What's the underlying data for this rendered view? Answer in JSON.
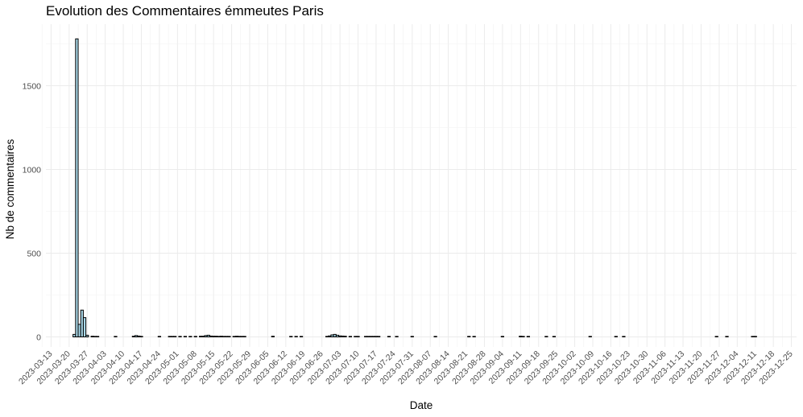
{
  "chart_data": {
    "type": "bar",
    "title": "Evolution des Commentaires émmeutes Paris",
    "xlabel": "Date",
    "ylabel": "Nb de commentaires",
    "ylim": [
      0,
      1850
    ],
    "xlim": [
      "2023-03-11",
      "2023-12-27"
    ],
    "y_ticks": [
      0,
      500,
      1000,
      1500
    ],
    "x_tick_labels": [
      "2023-03-13",
      "2023-03-20",
      "2023-03-27",
      "2023-04-03",
      "2023-04-10",
      "2023-04-17",
      "2023-04-24",
      "2023-05-01",
      "2023-05-08",
      "2023-05-15",
      "2023-05-22",
      "2023-05-29",
      "2023-06-05",
      "2023-06-12",
      "2023-06-19",
      "2023-06-26",
      "2023-07-03",
      "2023-07-10",
      "2023-07-17",
      "2023-07-24",
      "2023-07-31",
      "2023-08-07",
      "2023-08-14",
      "2023-08-21",
      "2023-08-28",
      "2023-09-04",
      "2023-09-11",
      "2023-09-18",
      "2023-09-25",
      "2023-10-02",
      "2023-10-09",
      "2023-10-16",
      "2023-10-23",
      "2023-10-30",
      "2023-11-06",
      "2023-11-13",
      "2023-11-20",
      "2023-11-27",
      "2023-12-04",
      "2023-12-11",
      "2023-12-18",
      "2023-12-25"
    ],
    "grid": true,
    "bar_fill": "#a9d8e8",
    "bar_stroke": "#000000",
    "data": [
      {
        "x": "2023-03-22",
        "y": 15
      },
      {
        "x": "2023-03-23",
        "y": 1780
      },
      {
        "x": "2023-03-24",
        "y": 75
      },
      {
        "x": "2023-03-25",
        "y": 160
      },
      {
        "x": "2023-03-26",
        "y": 115
      },
      {
        "x": "2023-03-27",
        "y": 10
      },
      {
        "x": "2023-03-29",
        "y": 4
      },
      {
        "x": "2023-03-30",
        "y": 3
      },
      {
        "x": "2023-03-31",
        "y": 3
      },
      {
        "x": "2023-04-07",
        "y": 3
      },
      {
        "x": "2023-04-14",
        "y": 4
      },
      {
        "x": "2023-04-15",
        "y": 8
      },
      {
        "x": "2023-04-16",
        "y": 5
      },
      {
        "x": "2023-04-17",
        "y": 3
      },
      {
        "x": "2023-04-24",
        "y": 3
      },
      {
        "x": "2023-04-28",
        "y": 3
      },
      {
        "x": "2023-04-29",
        "y": 3
      },
      {
        "x": "2023-04-30",
        "y": 3
      },
      {
        "x": "2023-05-02",
        "y": 3
      },
      {
        "x": "2023-05-04",
        "y": 3
      },
      {
        "x": "2023-05-06",
        "y": 3
      },
      {
        "x": "2023-05-08",
        "y": 3
      },
      {
        "x": "2023-05-10",
        "y": 4
      },
      {
        "x": "2023-05-11",
        "y": 4
      },
      {
        "x": "2023-05-12",
        "y": 8
      },
      {
        "x": "2023-05-13",
        "y": 10
      },
      {
        "x": "2023-05-14",
        "y": 5
      },
      {
        "x": "2023-05-15",
        "y": 4
      },
      {
        "x": "2023-05-16",
        "y": 4
      },
      {
        "x": "2023-05-17",
        "y": 3
      },
      {
        "x": "2023-05-18",
        "y": 4
      },
      {
        "x": "2023-05-19",
        "y": 3
      },
      {
        "x": "2023-05-20",
        "y": 3
      },
      {
        "x": "2023-05-21",
        "y": 3
      },
      {
        "x": "2023-05-23",
        "y": 3
      },
      {
        "x": "2023-05-24",
        "y": 4
      },
      {
        "x": "2023-05-25",
        "y": 3
      },
      {
        "x": "2023-05-26",
        "y": 3
      },
      {
        "x": "2023-05-27",
        "y": 3
      },
      {
        "x": "2023-06-07",
        "y": 4
      },
      {
        "x": "2023-06-14",
        "y": 3
      },
      {
        "x": "2023-06-16",
        "y": 3
      },
      {
        "x": "2023-06-18",
        "y": 3
      },
      {
        "x": "2023-06-28",
        "y": 3
      },
      {
        "x": "2023-06-29",
        "y": 6
      },
      {
        "x": "2023-06-30",
        "y": 12
      },
      {
        "x": "2023-07-01",
        "y": 15
      },
      {
        "x": "2023-07-02",
        "y": 10
      },
      {
        "x": "2023-07-03",
        "y": 6
      },
      {
        "x": "2023-07-04",
        "y": 5
      },
      {
        "x": "2023-07-05",
        "y": 4
      },
      {
        "x": "2023-07-07",
        "y": 3
      },
      {
        "x": "2023-07-09",
        "y": 3
      },
      {
        "x": "2023-07-10",
        "y": 3
      },
      {
        "x": "2023-07-13",
        "y": 3
      },
      {
        "x": "2023-07-14",
        "y": 3
      },
      {
        "x": "2023-07-15",
        "y": 3
      },
      {
        "x": "2023-07-16",
        "y": 3
      },
      {
        "x": "2023-07-17",
        "y": 3
      },
      {
        "x": "2023-07-18",
        "y": 3
      },
      {
        "x": "2023-07-22",
        "y": 3
      },
      {
        "x": "2023-07-25",
        "y": 3
      },
      {
        "x": "2023-07-31",
        "y": 3
      },
      {
        "x": "2023-08-09",
        "y": 3
      },
      {
        "x": "2023-08-22",
        "y": 3
      },
      {
        "x": "2023-08-24",
        "y": 3
      },
      {
        "x": "2023-09-04",
        "y": 3
      },
      {
        "x": "2023-09-11",
        "y": 4
      },
      {
        "x": "2023-09-12",
        "y": 3
      },
      {
        "x": "2023-09-14",
        "y": 3
      },
      {
        "x": "2023-09-21",
        "y": 3
      },
      {
        "x": "2023-09-24",
        "y": 3
      },
      {
        "x": "2023-10-08",
        "y": 3
      },
      {
        "x": "2023-10-18",
        "y": 3
      },
      {
        "x": "2023-10-21",
        "y": 3
      },
      {
        "x": "2023-11-26",
        "y": 3
      },
      {
        "x": "2023-11-30",
        "y": 3
      },
      {
        "x": "2023-12-10",
        "y": 3
      },
      {
        "x": "2023-12-11",
        "y": 3
      }
    ]
  }
}
